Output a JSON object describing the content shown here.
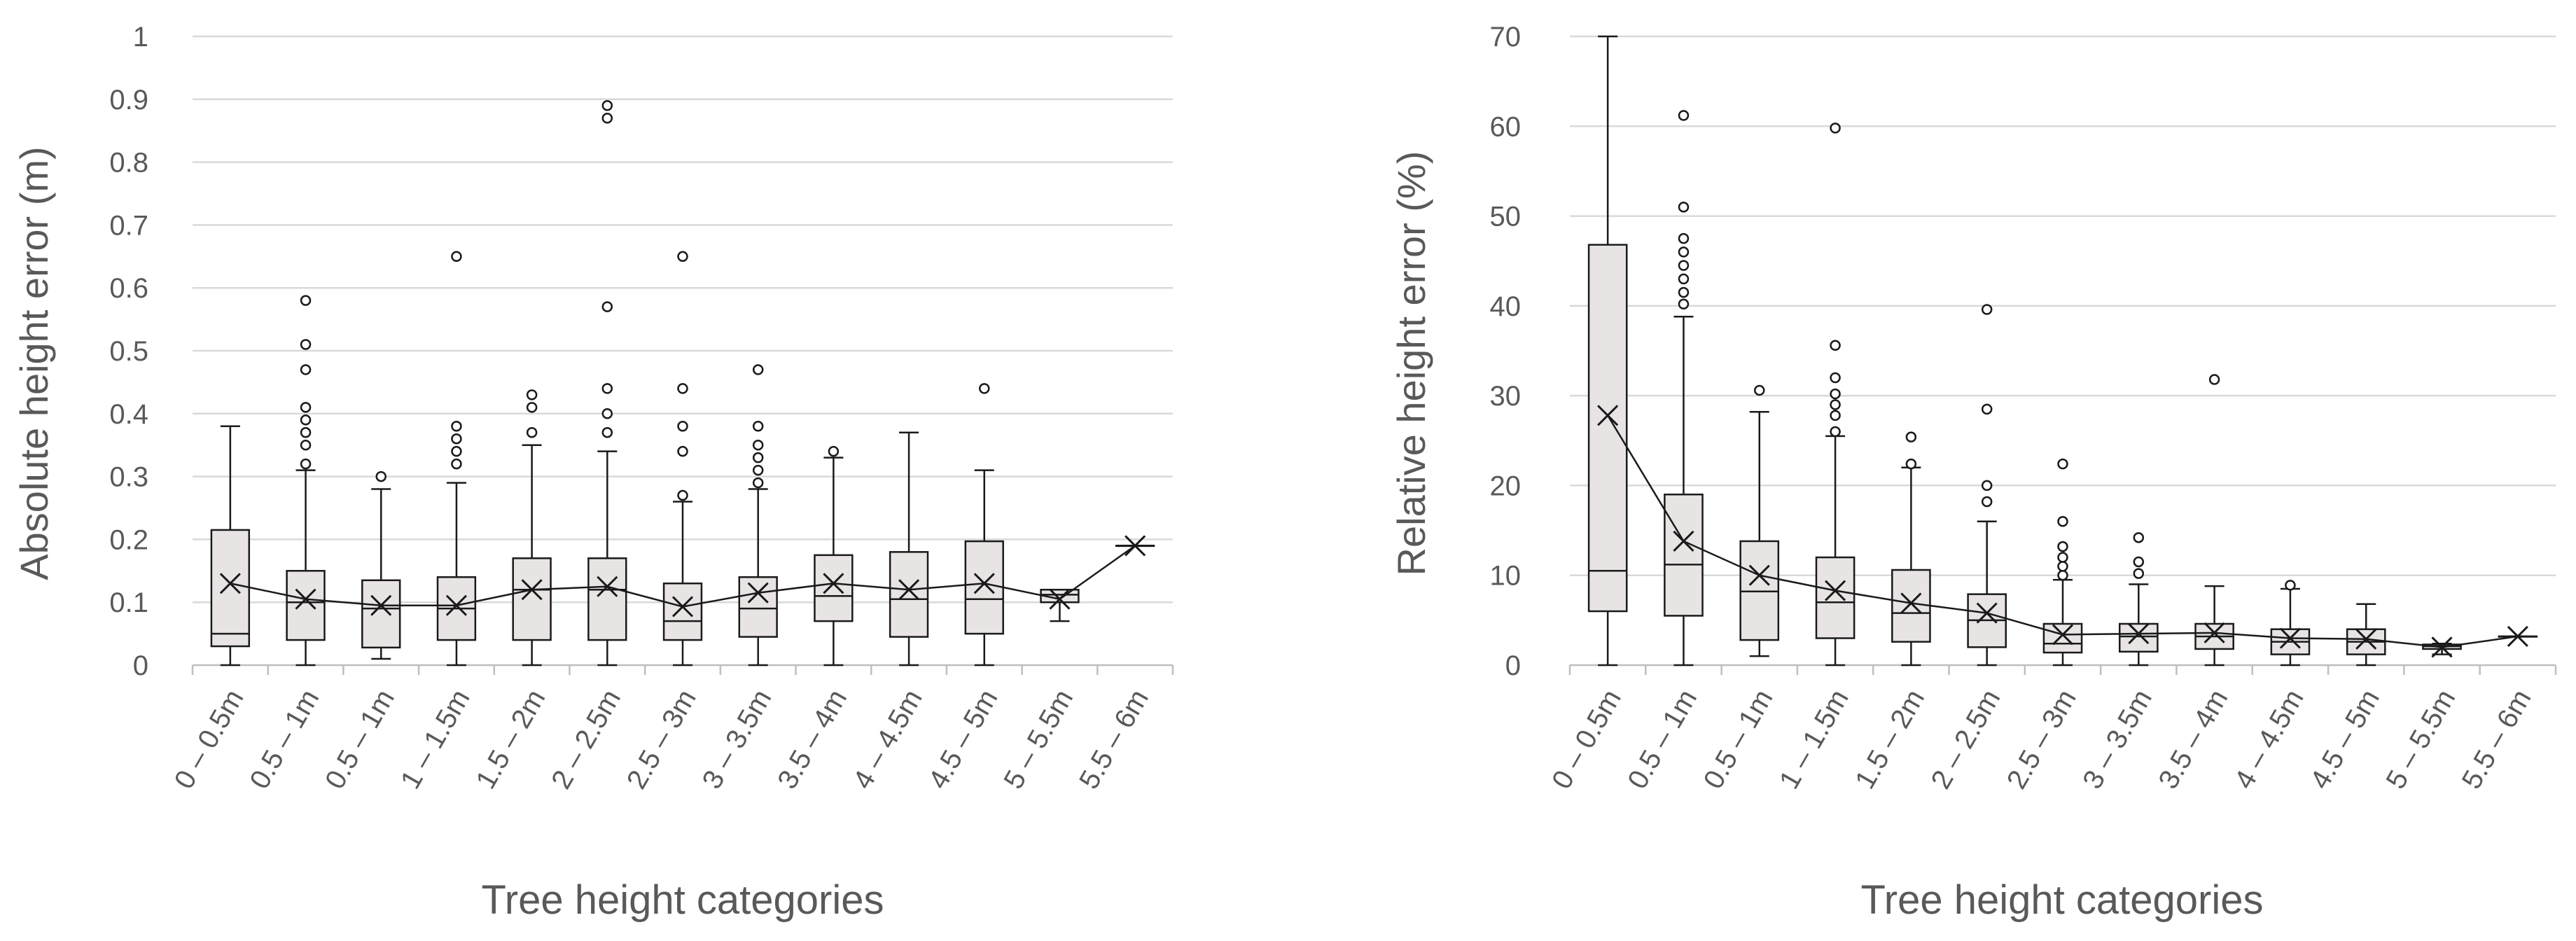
{
  "chart_data": [
    {
      "type": "box",
      "title": "",
      "ylabel": "Absolute height error (m)",
      "xlabel": "Tree height categories",
      "ylim": [
        0,
        1
      ],
      "yticks": [
        0,
        0.1,
        0.2,
        0.3,
        0.4,
        0.5,
        0.6,
        0.7,
        0.8,
        0.9,
        1
      ],
      "ytick_labels": [
        "0",
        "0.1",
        "0.2",
        "0.3",
        "0.4",
        "0.5",
        "0.6",
        "0.7",
        "0.8",
        "0.9",
        "1"
      ],
      "grid": true,
      "mean_line": true,
      "categories": [
        "0 – 0.5m",
        "0.5 – 1m",
        "0.5 – 1m",
        "1 – 1.5m",
        "1.5 – 2m",
        "2 – 2.5m",
        "2.5 – 3m",
        "3 – 3.5m",
        "3.5 – 4m",
        "4 – 4.5m",
        "4.5 – 5m",
        "5 – 5.5m",
        "5.5 – 6m"
      ],
      "boxes": [
        {
          "min": 0,
          "q1": 0.03,
          "median": 0.05,
          "q3": 0.215,
          "max": 0.38,
          "mean": 0.13,
          "outliers": []
        },
        {
          "min": 0,
          "q1": 0.04,
          "median": 0.1,
          "q3": 0.15,
          "max": 0.31,
          "mean": 0.105,
          "outliers": [
            0.32,
            0.35,
            0.37,
            0.39,
            0.41,
            0.47,
            0.51,
            0.58
          ]
        },
        {
          "min": 0.01,
          "q1": 0.028,
          "median": 0.09,
          "q3": 0.135,
          "max": 0.28,
          "mean": 0.095,
          "outliers": [
            0.3
          ]
        },
        {
          "min": 0,
          "q1": 0.04,
          "median": 0.09,
          "q3": 0.14,
          "max": 0.29,
          "mean": 0.095,
          "outliers": [
            0.32,
            0.34,
            0.36,
            0.38,
            0.65
          ]
        },
        {
          "min": 0,
          "q1": 0.04,
          "median": 0.12,
          "q3": 0.17,
          "max": 0.35,
          "mean": 0.12,
          "outliers": [
            0.37,
            0.41,
            0.43
          ]
        },
        {
          "min": 0,
          "q1": 0.04,
          "median": 0.12,
          "q3": 0.17,
          "max": 0.34,
          "mean": 0.125,
          "outliers": [
            0.37,
            0.4,
            0.44,
            0.57,
            0.87,
            0.89
          ]
        },
        {
          "min": 0,
          "q1": 0.04,
          "median": 0.07,
          "q3": 0.13,
          "max": 0.26,
          "mean": 0.093,
          "outliers": [
            0.27,
            0.34,
            0.38,
            0.44,
            0.65
          ]
        },
        {
          "min": 0,
          "q1": 0.045,
          "median": 0.09,
          "q3": 0.14,
          "max": 0.28,
          "mean": 0.115,
          "outliers": [
            0.29,
            0.31,
            0.33,
            0.35,
            0.38,
            0.47
          ]
        },
        {
          "min": 0,
          "q1": 0.07,
          "median": 0.11,
          "q3": 0.175,
          "max": 0.33,
          "mean": 0.13,
          "outliers": [
            0.34
          ]
        },
        {
          "min": 0,
          "q1": 0.045,
          "median": 0.105,
          "q3": 0.18,
          "max": 0.37,
          "mean": 0.12,
          "outliers": []
        },
        {
          "min": 0,
          "q1": 0.05,
          "median": 0.105,
          "q3": 0.197,
          "max": 0.31,
          "mean": 0.13,
          "outliers": [
            0.44
          ]
        },
        {
          "min": 0.07,
          "q1": 0.1,
          "median": 0.112,
          "q3": 0.12,
          "max": 0.12,
          "mean": 0.105,
          "outliers": []
        },
        {
          "min": 0.19,
          "q1": 0.19,
          "median": 0.19,
          "q3": 0.19,
          "max": 0.19,
          "mean": 0.19,
          "outliers": []
        }
      ]
    },
    {
      "type": "box",
      "title": "",
      "ylabel": "Relative height error (%)",
      "xlabel": "Tree height categories",
      "ylim": [
        0,
        70
      ],
      "yticks": [
        0,
        10,
        20,
        30,
        40,
        50,
        60,
        70
      ],
      "ytick_labels": [
        "0",
        "10",
        "20",
        "30",
        "40",
        "50",
        "60",
        "70"
      ],
      "grid": true,
      "mean_line": true,
      "categories": [
        "0 – 0.5m",
        "0.5 – 1m",
        "0.5 – 1m",
        "1 – 1.5m",
        "1.5 – 2m",
        "2 – 2.5m",
        "2.5 – 3m",
        "3 – 3.5m",
        "3.5 – 4m",
        "4 – 4.5m",
        "4.5 – 5m",
        "5 – 5.5m",
        "5.5 – 6m"
      ],
      "boxes": [
        {
          "min": 0,
          "q1": 6,
          "median": 10.5,
          "q3": 46.8,
          "max": 70,
          "mean": 27.8,
          "outliers": []
        },
        {
          "min": 0,
          "q1": 5.5,
          "median": 11.2,
          "q3": 19,
          "max": 38.8,
          "mean": 13.8,
          "outliers": [
            40.2,
            41.5,
            43,
            44.5,
            46,
            47.5,
            51,
            61.2
          ]
        },
        {
          "min": 1,
          "q1": 2.8,
          "median": 8.2,
          "q3": 13.8,
          "max": 28.2,
          "mean": 10,
          "outliers": [
            30.6
          ]
        },
        {
          "min": 0,
          "q1": 3,
          "median": 7,
          "q3": 12,
          "max": 25.5,
          "mean": 8.3,
          "outliers": [
            26,
            27.8,
            29,
            30.2,
            32,
            35.6,
            59.8
          ]
        },
        {
          "min": 0,
          "q1": 2.6,
          "median": 5.8,
          "q3": 10.6,
          "max": 22,
          "mean": 6.9,
          "outliers": [
            22.4,
            25.4
          ]
        },
        {
          "min": 0,
          "q1": 2,
          "median": 5,
          "q3": 7.9,
          "max": 16,
          "mean": 5.8,
          "outliers": [
            18.2,
            20,
            28.5,
            39.6
          ]
        },
        {
          "min": 0,
          "q1": 1.4,
          "median": 2.4,
          "q3": 4.6,
          "max": 9.5,
          "mean": 3.4,
          "outliers": [
            10,
            11,
            12,
            13.2,
            16,
            22.4
          ]
        },
        {
          "min": 0,
          "q1": 1.5,
          "median": 3.2,
          "q3": 4.6,
          "max": 9,
          "mean": 3.5,
          "outliers": [
            10.2,
            11.5,
            14.2
          ]
        },
        {
          "min": 0,
          "q1": 1.8,
          "median": 3.2,
          "q3": 4.6,
          "max": 8.8,
          "mean": 3.6,
          "outliers": [
            31.8
          ]
        },
        {
          "min": 0,
          "q1": 1.2,
          "median": 2.6,
          "q3": 4,
          "max": 8.5,
          "mean": 3,
          "outliers": [
            8.9
          ]
        },
        {
          "min": 0,
          "q1": 1.2,
          "median": 2.6,
          "q3": 4,
          "max": 6.8,
          "mean": 2.9,
          "outliers": []
        },
        {
          "min": 1.2,
          "q1": 1.8,
          "median": 2.1,
          "q3": 2.3,
          "max": 2.4,
          "mean": 2.0,
          "outliers": []
        },
        {
          "min": 3.2,
          "q1": 3.2,
          "median": 3.2,
          "q3": 3.2,
          "max": 3.2,
          "mean": 3.2,
          "outliers": []
        }
      ]
    }
  ]
}
